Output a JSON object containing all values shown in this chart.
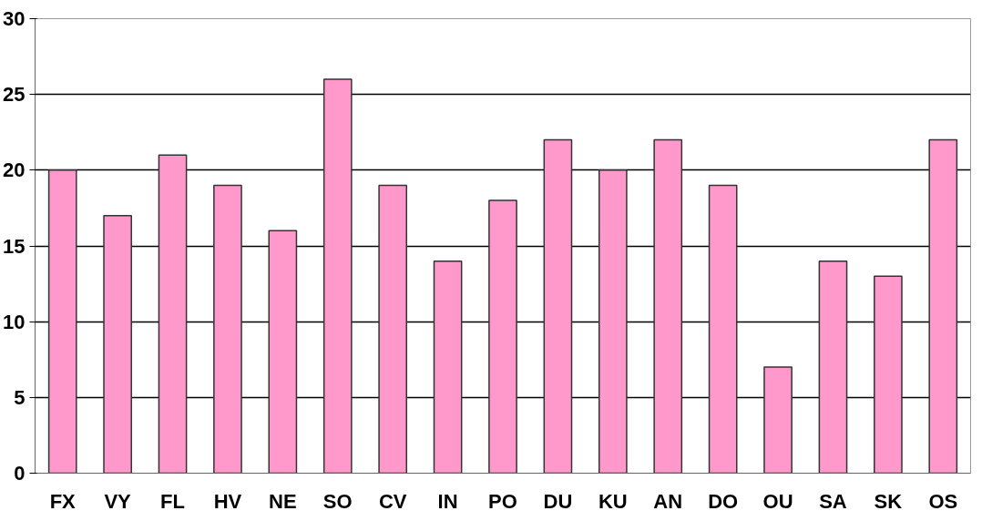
{
  "chart_data": {
    "type": "bar",
    "categories": [
      "FX",
      "VY",
      "FL",
      "HV",
      "NE",
      "SO",
      "CV",
      "IN",
      "PO",
      "DU",
      "KU",
      "AN",
      "DO",
      "OU",
      "SA",
      "SK",
      "OS"
    ],
    "values": [
      20,
      17,
      21,
      19,
      16,
      26,
      19,
      14,
      18,
      22,
      20,
      22,
      19,
      7,
      14,
      13,
      22
    ],
    "color": "#ff99cc",
    "ylim": [
      0,
      30
    ],
    "yticks": [
      0,
      5,
      10,
      15,
      20,
      25,
      30
    ],
    "grid": "y"
  }
}
